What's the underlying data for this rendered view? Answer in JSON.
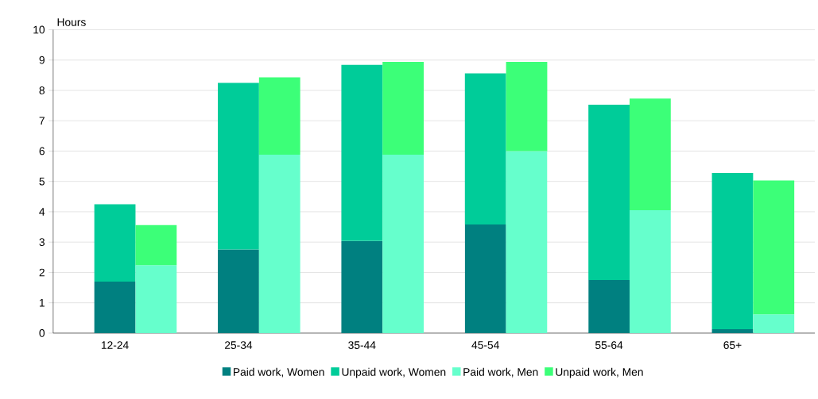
{
  "chart_data": {
    "type": "bar",
    "stacked": true,
    "ylabel": "Hours",
    "categories": [
      "12-24",
      null,
      null,
      "25-34",
      null,
      null,
      "35-44",
      null,
      null,
      "45-54",
      null,
      null,
      "55-64",
      null,
      null,
      "65+",
      null
    ],
    "series": [
      {
        "name": "Paid work, Women",
        "color": "#008080",
        "values": [
          1.7,
          null,
          null,
          2.76,
          null,
          null,
          3.04,
          null,
          null,
          3.58,
          null,
          null,
          1.75,
          null,
          null,
          0.13,
          null
        ]
      },
      {
        "name": "Unpaid work, Women",
        "color": "#00cc99",
        "values": [
          2.55,
          null,
          null,
          5.49,
          null,
          null,
          5.8,
          null,
          null,
          4.98,
          null,
          null,
          5.78,
          null,
          null,
          5.15,
          null
        ]
      },
      {
        "name": "Paid work, Men",
        "color": "#66ffcc",
        "values": [
          null,
          2.24,
          null,
          null,
          5.88,
          null,
          null,
          5.88,
          null,
          null,
          6.0,
          null,
          null,
          4.05,
          null,
          null,
          0.62
        ]
      },
      {
        "name": "Unpaid work, Men",
        "color": "#3cff78",
        "values": [
          null,
          1.32,
          null,
          null,
          2.55,
          null,
          null,
          3.06,
          null,
          null,
          2.94,
          null,
          null,
          3.68,
          null,
          null,
          4.41
        ]
      }
    ],
    "ylim": [
      0,
      10
    ],
    "yticks": [
      0,
      1,
      2,
      3,
      4,
      5,
      6,
      7,
      8,
      9,
      10
    ],
    "grid": "y",
    "legend": "bottom"
  }
}
